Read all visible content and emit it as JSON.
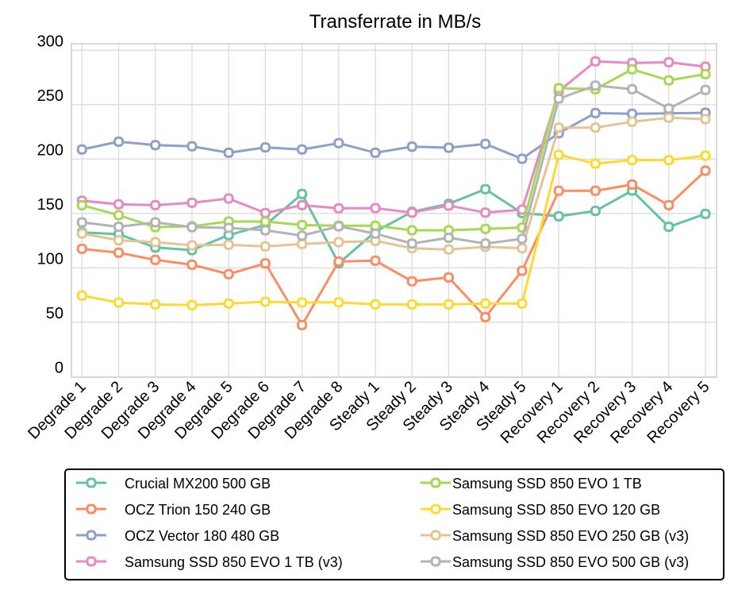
{
  "chart_data": {
    "type": "line",
    "title": "Transferrate in MB/s",
    "xlabel": "",
    "ylabel": "",
    "ylim": [
      0,
      300
    ],
    "yticks": [
      0,
      50,
      100,
      150,
      200,
      250,
      300
    ],
    "grid": true,
    "legend_position": "bottom",
    "categories": [
      "Degrade 1",
      "Degrade 2",
      "Degrade 3",
      "Degrade 4",
      "Degrade 5",
      "Degrade 6",
      "Degrade 7",
      "Degrade 8",
      "Steady 1",
      "Steady 2",
      "Steady 3",
      "Steady 4",
      "Steady 5",
      "Recovery 1",
      "Recovery 2",
      "Recovery 3",
      "Recovery 4",
      "Recovery 5"
    ],
    "series": [
      {
        "name": "Crucial MX200 500 GB",
        "color": "#66c2a5",
        "values": [
          132.6,
          130.9,
          118.7,
          116.3,
          130.1,
          139.4,
          167.9,
          104.1,
          133.3,
          151.5,
          158.8,
          172.3,
          150.4,
          147.4,
          152.3,
          171.0,
          137.7,
          149.6
        ]
      },
      {
        "name": "OCZ Trion 150 240 GB",
        "color": "#fc8d62",
        "values": [
          117.5,
          113.9,
          107.3,
          102.9,
          94.2,
          104.1,
          47.4,
          105.8,
          106.6,
          87.6,
          91.2,
          54.7,
          97.3,
          170.8,
          170.8,
          176.6,
          157.6,
          189.3
        ]
      },
      {
        "name": "OCZ Vector 180 480 GB",
        "color": "#8da0cb",
        "values": [
          208.8,
          216.0,
          212.8,
          211.7,
          205.8,
          210.7,
          208.8,
          214.6,
          205.8,
          211.4,
          210.4,
          213.9,
          200.2,
          223.8,
          242.3,
          241.6,
          242.0,
          242.6
        ]
      },
      {
        "name": "Samsung SSD 850 EVO 1 TB (v3)",
        "color": "#e78ac3",
        "values": [
          161.7,
          158.4,
          157.6,
          159.8,
          163.7,
          150.4,
          157.6,
          154.7,
          154.9,
          150.8,
          157.2,
          150.8,
          153.5,
          262.3,
          289.8,
          288.3,
          289.0,
          284.9
        ]
      },
      {
        "name": "Samsung SSD 850 EVO 1 TB",
        "color": "#a6d854",
        "values": [
          157.6,
          148.4,
          137.4,
          138.2,
          142.6,
          142.6,
          139.4,
          138.7,
          138.7,
          134.5,
          134.5,
          135.8,
          137.0,
          265.2,
          264.2,
          282.5,
          272.3,
          278.1
        ]
      },
      {
        "name": "Samsung SSD 850 EVO 120 GB",
        "color": "#ffd92f",
        "values": [
          74.5,
          68.1,
          66.4,
          65.7,
          67.2,
          68.8,
          68.1,
          68.3,
          66.4,
          66.4,
          66.4,
          67.2,
          67.2,
          203.9,
          195.8,
          199.0,
          199.0,
          203.1
        ]
      },
      {
        "name": "Samsung SSD 850 EVO 250 GB (v3)",
        "color": "#e5c494",
        "values": [
          131.6,
          125.3,
          123.6,
          120.7,
          121.2,
          119.7,
          121.9,
          123.6,
          124.8,
          118.0,
          116.8,
          119.4,
          118.0,
          228.9,
          228.9,
          234.3,
          238.0,
          236.7
        ]
      },
      {
        "name": "Samsung SSD 850 EVO 500 GB (v3)",
        "color": "#b3b3b3",
        "values": [
          141.8,
          137.7,
          141.8,
          137.4,
          136.7,
          134.5,
          129.6,
          138.2,
          131.4,
          122.3,
          127.7,
          122.3,
          126.7,
          255.5,
          267.6,
          264.2,
          246.4,
          263.5
        ]
      }
    ]
  }
}
